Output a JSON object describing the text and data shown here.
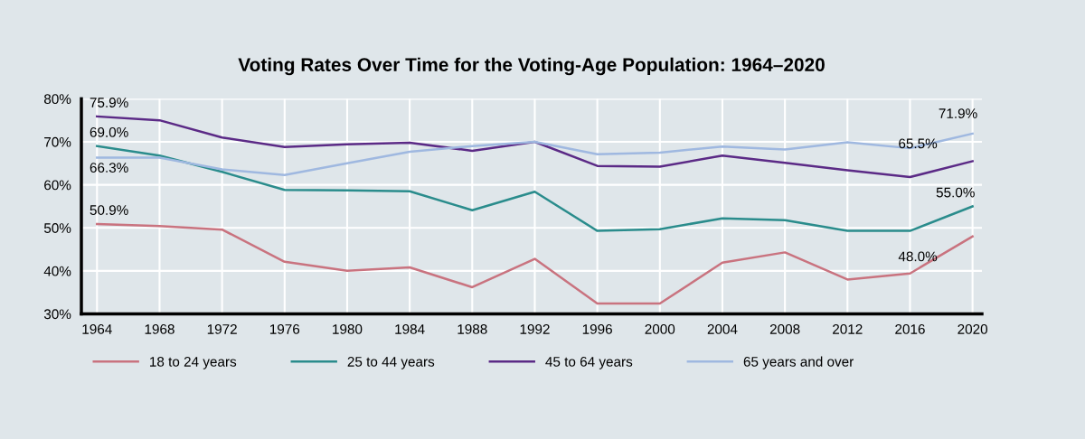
{
  "chart_data": {
    "type": "line",
    "title": "Voting Rates Over Time for the Voting-Age Population: 1964–2020",
    "categories": [
      "1964",
      "1968",
      "1972",
      "1976",
      "1980",
      "1984",
      "1988",
      "1992",
      "1996",
      "2000",
      "2004",
      "2008",
      "2012",
      "2016",
      "2020"
    ],
    "series": [
      {
        "name": "18 to 24 years",
        "color": "#c9737f",
        "values": [
          50.9,
          50.4,
          49.6,
          42.1,
          40.0,
          40.8,
          36.2,
          42.8,
          32.4,
          32.4,
          41.9,
          44.3,
          38.0,
          39.4,
          48.0
        ]
      },
      {
        "name": "25 to 44 years",
        "color": "#2a8c8c",
        "values": [
          69.0,
          66.8,
          63.0,
          58.8,
          58.7,
          58.5,
          54.1,
          58.4,
          49.3,
          49.7,
          52.2,
          51.8,
          49.3,
          49.3,
          55.0
        ]
      },
      {
        "name": "45 to 64 years",
        "color": "#5b2a86",
        "values": [
          75.9,
          75.0,
          71.0,
          68.8,
          69.4,
          69.8,
          67.9,
          70.0,
          64.4,
          64.2,
          66.8,
          65.1,
          63.4,
          61.8,
          65.5
        ]
      },
      {
        "name": "65 years and over",
        "color": "#9fb8e0",
        "values": [
          66.3,
          66.3,
          63.6,
          62.3,
          65.0,
          67.7,
          69.0,
          70.0,
          67.1,
          67.5,
          68.9,
          68.2,
          69.9,
          68.5,
          71.9
        ]
      }
    ],
    "ylim": [
      30,
      80
    ],
    "yticks": [
      {
        "value": 30,
        "label": "30%"
      },
      {
        "value": 40,
        "label": "40%"
      },
      {
        "value": 50,
        "label": "50%"
      },
      {
        "value": 60,
        "label": "60%"
      },
      {
        "value": 70,
        "label": "70%"
      },
      {
        "value": 80,
        "label": "80%"
      }
    ],
    "annotations": [
      {
        "text": "75.9%",
        "x": "1964",
        "y": 75.9
      },
      {
        "text": "69.0%",
        "x": "1964",
        "y": 69.0
      },
      {
        "text": "66.3%",
        "x": "1964",
        "y": 66.3
      },
      {
        "text": "50.9%",
        "x": "1964",
        "y": 50.9
      },
      {
        "text": "71.9%",
        "x": "2020",
        "y": 71.9
      },
      {
        "text": "65.5%",
        "x": "2020",
        "y": 65.5
      },
      {
        "text": "55.0%",
        "x": "2020",
        "y": 55.0
      },
      {
        "text": "48.0%",
        "x": "2020",
        "y": 48.0
      }
    ],
    "grid": true,
    "legend": "bottom",
    "marker": "none",
    "line_style": "solid"
  }
}
